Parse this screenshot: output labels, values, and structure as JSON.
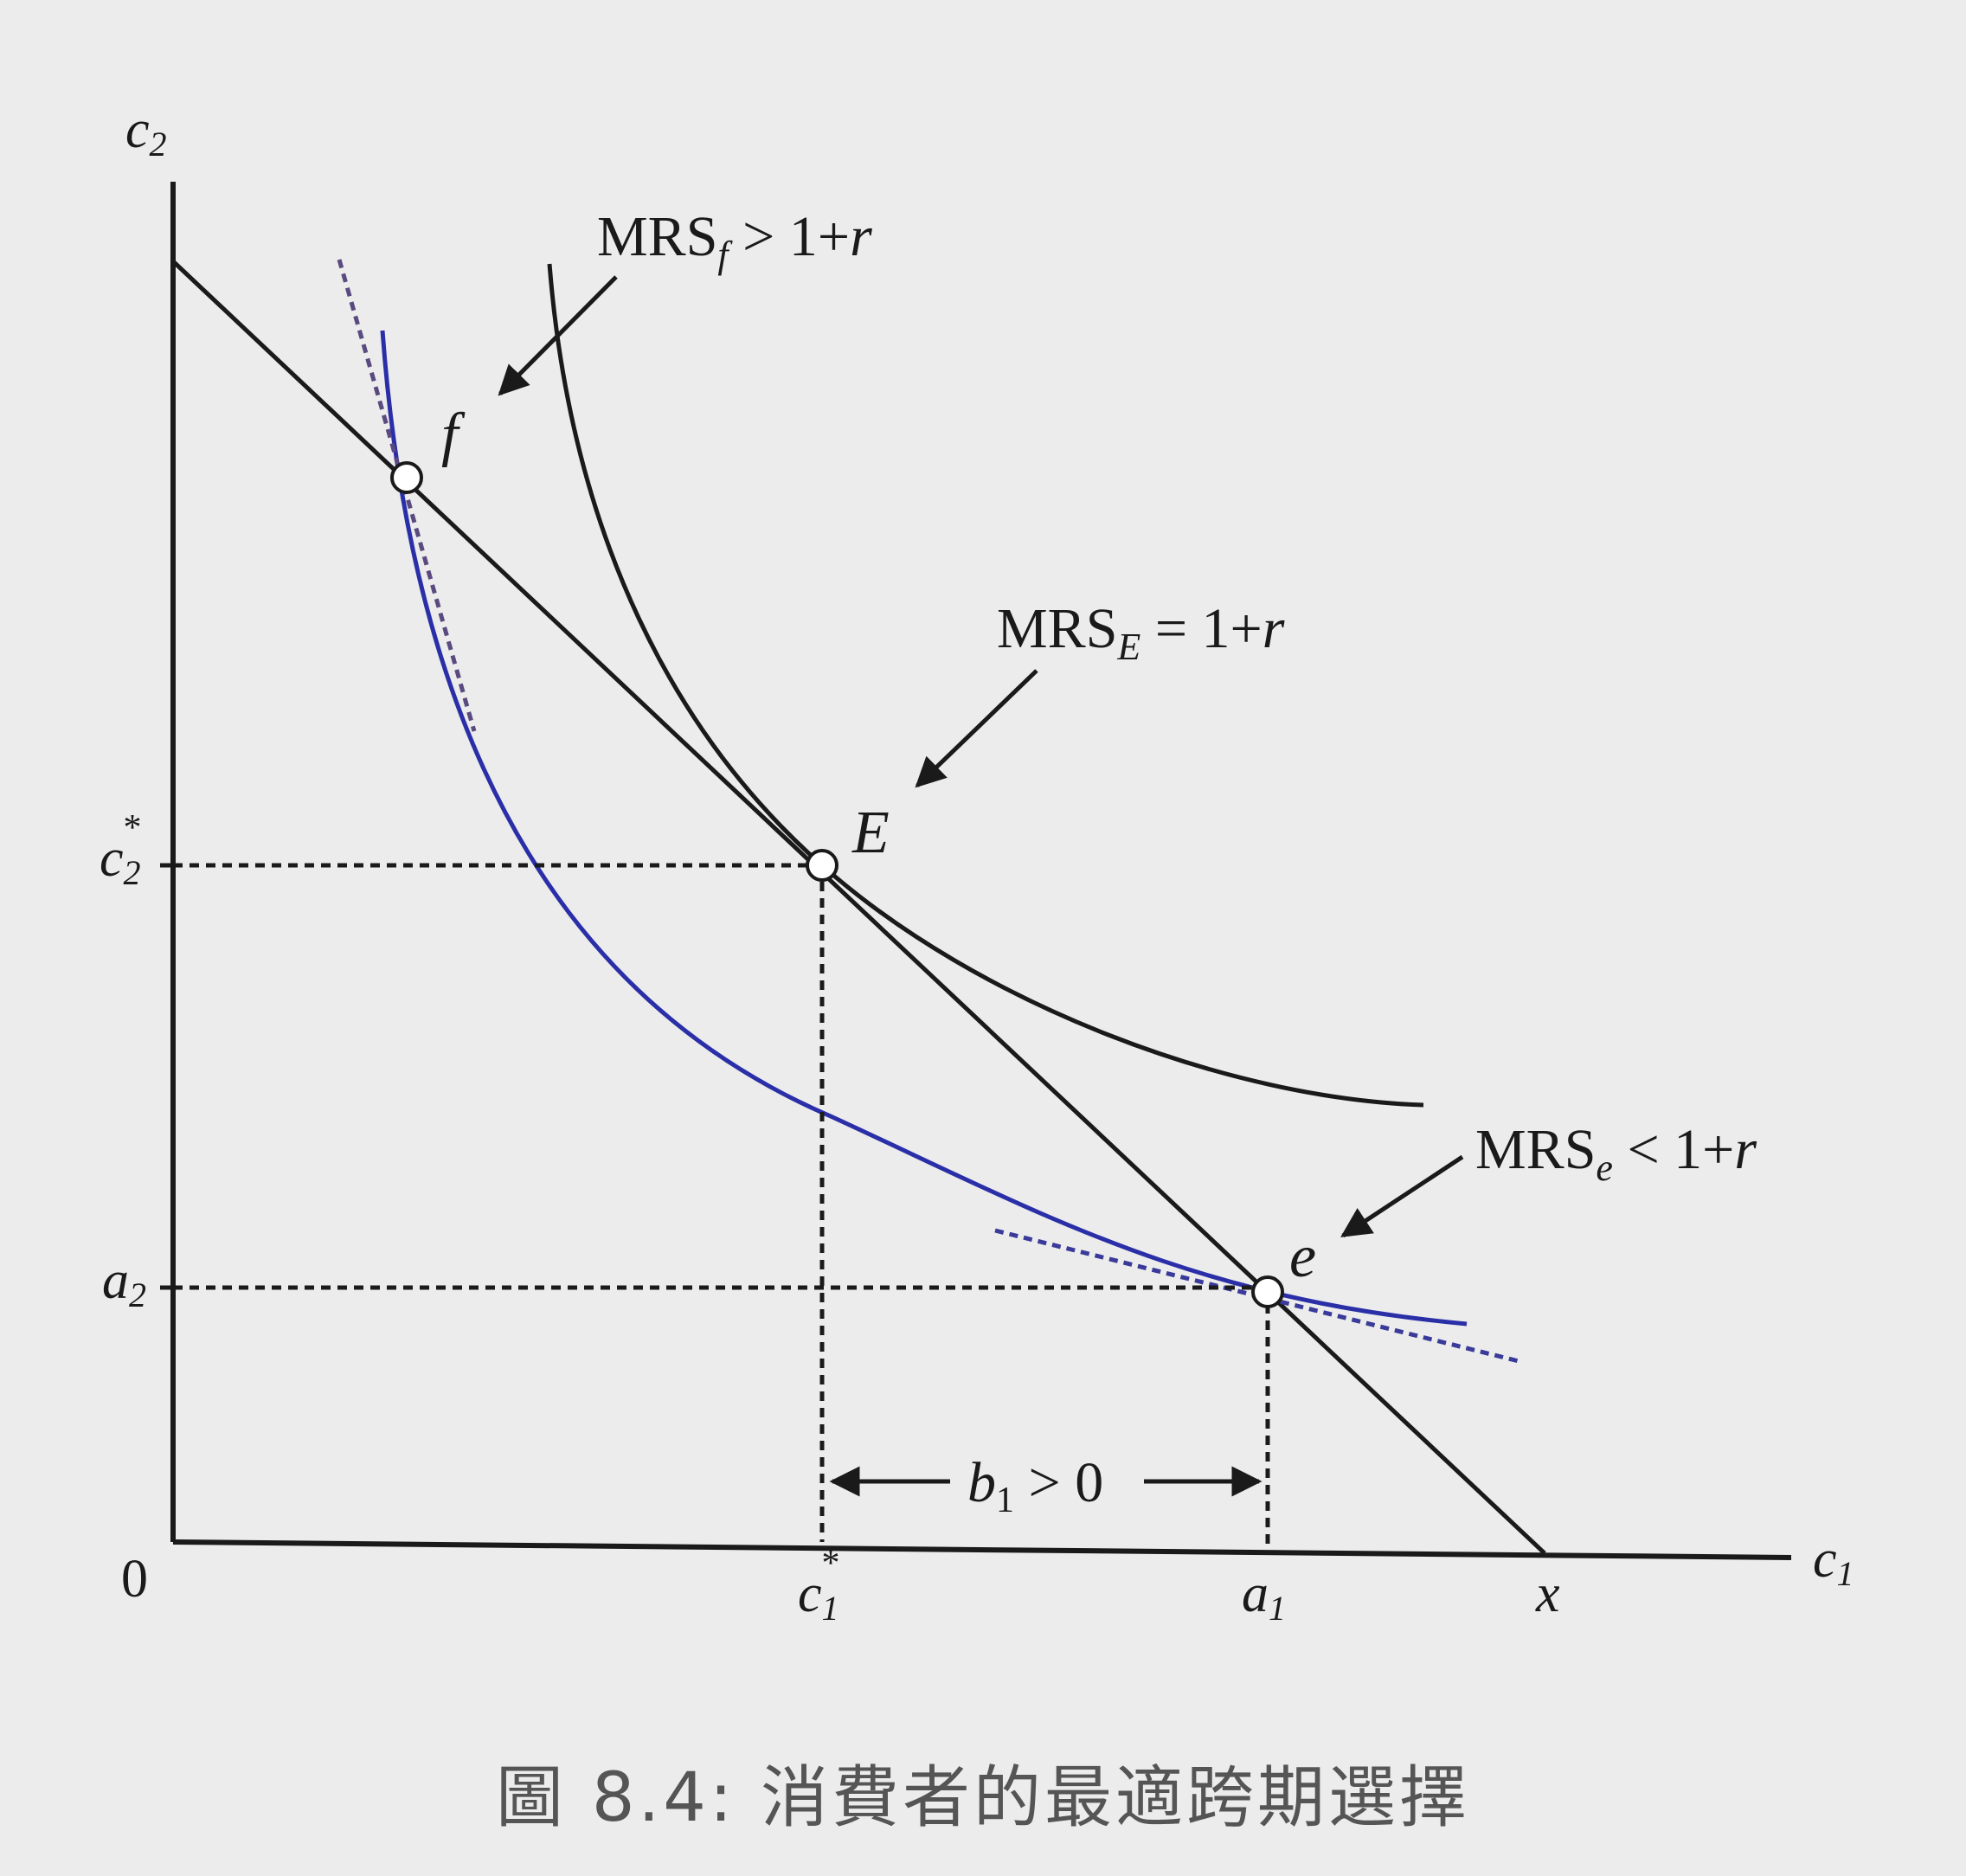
{
  "axes": {
    "y_label": "c",
    "y_label_sub": "2",
    "x_label": "c",
    "x_label_sub": "1",
    "origin": "0"
  },
  "ticks": {
    "c2_star": {
      "base": "c",
      "sub": "2",
      "sup": "*"
    },
    "a2": {
      "base": "a",
      "sub": "2"
    },
    "c1_star": {
      "base": "c",
      "sub": "1",
      "sup": "*"
    },
    "a1": {
      "base": "a",
      "sub": "1"
    },
    "x": "x"
  },
  "points": {
    "f": "f",
    "E": "E",
    "e": "e"
  },
  "annotations": {
    "mrs_f": {
      "base": "MRS",
      "sub": "f",
      "rest": " > 1+",
      "var": "r"
    },
    "mrs_E": {
      "base": "MRS",
      "sub": "E",
      "rest": " = 1+",
      "var": "r"
    },
    "mrs_e": {
      "base": "MRS",
      "sub": "e",
      "rest": " < 1+",
      "var": "r"
    },
    "b1": {
      "base": "b",
      "sub": "1",
      "rest": " > 0"
    }
  },
  "colors": {
    "ink": "#1a1a1a",
    "blue_curve": "#2a2fa8",
    "dotted_tangent": "#5a4a80",
    "background": "#ececec"
  },
  "caption": "圖 8.4: 消費者的最適跨期選擇"
}
